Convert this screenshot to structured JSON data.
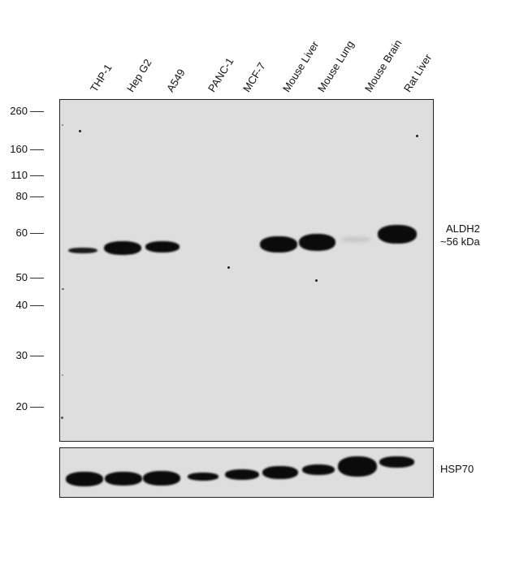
{
  "lanes": [
    "THP-1",
    "Hep G2",
    "A549",
    "PANC-1",
    "MCF-7",
    "Mouse Liver",
    "Mouse Lung",
    "Mouse Brain",
    "Rat Liver"
  ],
  "mw_markers": [
    "260",
    "160",
    "110",
    "80",
    "60",
    "50",
    "40",
    "30",
    "20"
  ],
  "target_label": {
    "name": "ALDH2",
    "size": "~56 kDa"
  },
  "loading_control_label": "HSP70",
  "colors": {
    "membrane": "#dedede",
    "band": "#0b0b0b",
    "frame": "#222222"
  }
}
